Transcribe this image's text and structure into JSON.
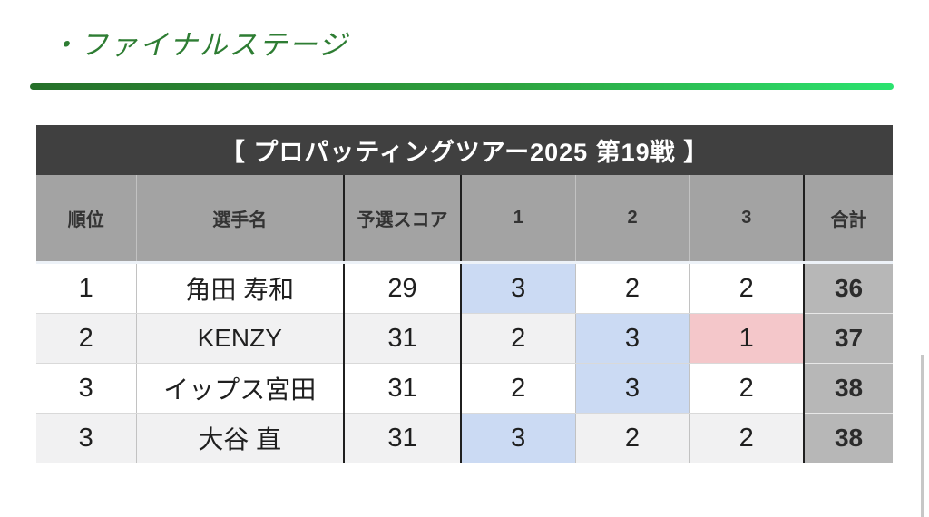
{
  "slide": {
    "title": "・ファイナルステージ"
  },
  "table": {
    "title": "【 プロパッティングツアー2025 第19戦 】",
    "columns": {
      "rank": "順位",
      "player": "選手名",
      "qualifying_score": "予選スコア",
      "game1": "1",
      "game2": "2",
      "game3": "3",
      "total": "合計"
    },
    "rows": [
      {
        "rank": "1",
        "player": "角田 寿和",
        "qualifying_score": "29",
        "game1": "3",
        "game2": "2",
        "game3": "2",
        "total": "36",
        "highlights": {
          "game1": "blue"
        }
      },
      {
        "rank": "2",
        "player": "KENZY",
        "qualifying_score": "31",
        "game1": "2",
        "game2": "3",
        "game3": "1",
        "total": "37",
        "highlights": {
          "game2": "blue",
          "game3": "pink"
        }
      },
      {
        "rank": "3",
        "player": "イップス宮田",
        "qualifying_score": "31",
        "game1": "2",
        "game2": "3",
        "game3": "2",
        "total": "38",
        "highlights": {
          "game2": "blue"
        }
      },
      {
        "rank": "3",
        "player": "大谷 直",
        "qualifying_score": "31",
        "game1": "3",
        "game2": "2",
        "game3": "2",
        "total": "38",
        "highlights": {
          "game1": "blue"
        }
      }
    ]
  },
  "colors": {
    "title_green": "#2e7d33",
    "underline_gradient_start": "#26702a",
    "underline_gradient_end": "#2be36f",
    "table_title_bg": "#404040",
    "header_bg": "#a3a3a3",
    "alt_row_bg": "#f1f1f2",
    "total_cell_bg": "#b7b7b7",
    "highlight_blue": "#cbdaf3",
    "highlight_pink": "#f4c7ca"
  }
}
